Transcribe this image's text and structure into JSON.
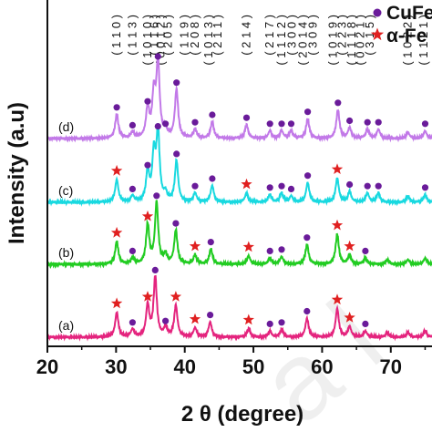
{
  "chart_data": {
    "type": "line",
    "xlabel": "2 θ (degree)",
    "ylabel": "Intensity (a.u)",
    "xlim": [
      20,
      76
    ],
    "x_ticks": [
      20,
      30,
      40,
      50,
      60,
      70
    ],
    "x_tick_labels": [
      "20",
      "30",
      "40",
      "50",
      "60",
      "70"
    ],
    "grid": false,
    "legend": {
      "placement": "top-right",
      "entries": [
        {
          "symbol": "circle",
          "color": "#6a1b9a",
          "label": "CuFe"
        },
        {
          "symbol": "star",
          "color": "#e02020",
          "label": "α-Fe"
        }
      ]
    },
    "series": [
      {
        "label": "(a)",
        "color": "#e4247e",
        "offset": 0,
        "peaks": [
          [
            30.1,
            0.33
          ],
          [
            32.4,
            0.1
          ],
          [
            34.6,
            0.42
          ],
          [
            35.7,
            0.8
          ],
          [
            37.2,
            0.12
          ],
          [
            38.7,
            0.42
          ],
          [
            41.5,
            0.12
          ],
          [
            43.7,
            0.2
          ],
          [
            49.3,
            0.11
          ],
          [
            52.4,
            0.08
          ],
          [
            54.1,
            0.1
          ],
          [
            57.8,
            0.25
          ],
          [
            62.2,
            0.38
          ],
          [
            64.0,
            0.14
          ],
          [
            66.3,
            0.08
          ],
          [
            69.5,
            0.06
          ],
          [
            72.5,
            0.06
          ],
          [
            75.0,
            0.08
          ]
        ],
        "stars": [
          30.1,
          34.6,
          38.7,
          41.5,
          49.3,
          62.2,
          64.0
        ],
        "circles": [
          32.4,
          35.7,
          37.2,
          43.7,
          52.4,
          54.1,
          57.8,
          66.3
        ]
      },
      {
        "label": "(b)",
        "color": "#22cc22",
        "offset": 1,
        "peaks": [
          [
            30.1,
            0.3
          ],
          [
            32.4,
            0.08
          ],
          [
            34.6,
            0.52
          ],
          [
            35.9,
            0.82
          ],
          [
            37.2,
            0.12
          ],
          [
            38.7,
            0.45
          ],
          [
            41.5,
            0.12
          ],
          [
            43.8,
            0.2
          ],
          [
            49.3,
            0.11
          ],
          [
            52.4,
            0.08
          ],
          [
            54.1,
            0.1
          ],
          [
            57.8,
            0.26
          ],
          [
            62.2,
            0.4
          ],
          [
            64.0,
            0.12
          ],
          [
            66.3,
            0.08
          ],
          [
            69.5,
            0.06
          ],
          [
            72.5,
            0.06
          ],
          [
            75.0,
            0.08
          ]
        ],
        "stars": [
          30.1,
          34.6,
          41.5,
          49.3,
          62.2,
          64.0
        ],
        "circles": [
          32.4,
          35.9,
          38.7,
          43.8,
          52.4,
          54.1,
          57.8,
          66.3
        ]
      },
      {
        "label": "(c)",
        "color": "#19d9e0",
        "offset": 2,
        "peaks": [
          [
            30.1,
            0.3
          ],
          [
            32.4,
            0.08
          ],
          [
            34.6,
            0.4
          ],
          [
            35.5,
            0.6
          ],
          [
            36.1,
            0.92
          ],
          [
            37.2,
            0.1
          ],
          [
            38.8,
            0.55
          ],
          [
            41.5,
            0.12
          ],
          [
            44.0,
            0.22
          ],
          [
            49.0,
            0.12
          ],
          [
            52.4,
            0.1
          ],
          [
            54.1,
            0.12
          ],
          [
            55.5,
            0.08
          ],
          [
            57.9,
            0.26
          ],
          [
            62.2,
            0.32
          ],
          [
            64.0,
            0.14
          ],
          [
            66.6,
            0.12
          ],
          [
            68.2,
            0.12
          ],
          [
            72.5,
            0.08
          ],
          [
            75.0,
            0.1
          ]
        ],
        "stars": [
          30.1,
          49.0,
          62.2
        ],
        "circles": [
          32.4,
          34.6,
          36.1,
          38.8,
          41.5,
          44.0,
          52.4,
          54.1,
          55.5,
          57.9,
          64.0,
          66.6,
          68.2,
          75.0
        ]
      },
      {
        "label": "(d)",
        "color": "#c279e8",
        "offset": 3,
        "peaks": [
          [
            30.1,
            0.32
          ],
          [
            32.4,
            0.08
          ],
          [
            34.6,
            0.4
          ],
          [
            35.5,
            0.55
          ],
          [
            36.1,
            1.0
          ],
          [
            37.2,
            0.1
          ],
          [
            38.8,
            0.65
          ],
          [
            41.5,
            0.12
          ],
          [
            44.0,
            0.22
          ],
          [
            49.0,
            0.18
          ],
          [
            52.4,
            0.1
          ],
          [
            54.1,
            0.1
          ],
          [
            55.5,
            0.1
          ],
          [
            57.9,
            0.26
          ],
          [
            62.3,
            0.38
          ],
          [
            64.0,
            0.14
          ],
          [
            66.6,
            0.12
          ],
          [
            68.2,
            0.12
          ],
          [
            72.5,
            0.08
          ],
          [
            75.0,
            0.1
          ]
        ],
        "stars": [],
        "circles": [
          30.1,
          32.4,
          34.6,
          36.1,
          37.2,
          38.8,
          41.5,
          44.0,
          49.0,
          52.4,
          54.1,
          55.5,
          57.9,
          62.3,
          64.0,
          66.6,
          68.2,
          75.0
        ]
      }
    ],
    "hkl_labels": [
      {
        "x": 30.1,
        "text": "( 1 1 0 )"
      },
      {
        "x": 32.4,
        "text": "( 1 1 3 )"
      },
      {
        "x": 34.6,
        "text": "( 1 0 1 0 )"
      },
      {
        "x": 35.6,
        "text": "( 1 1 6 )"
      },
      {
        "x": 36.5,
        "text": "( 0 0 1 2 )"
      },
      {
        "x": 37.6,
        "text": "( 2 0 5 )"
      },
      {
        "x": 40.0,
        "text": "( 1 1 9 )"
      },
      {
        "x": 41.5,
        "text": "( 2 0 8 )"
      },
      {
        "x": 43.5,
        "text": "( 1 0 1 3 )"
      },
      {
        "x": 44.8,
        "text": "( 2 1 1 )"
      },
      {
        "x": 49.0,
        "text": "( 2 1 4 )"
      },
      {
        "x": 52.4,
        "text": "( 2 1 7 )"
      },
      {
        "x": 54.1,
        "text": "( 1 1 1 2 )"
      },
      {
        "x": 55.6,
        "text": "( 3 0 0 )"
      },
      {
        "x": 57.2,
        "text": "( 2 0 1 4 )"
      },
      {
        "x": 58.7,
        "text": "( 3 0 9 )"
      },
      {
        "x": 61.6,
        "text": "( 1 0 1 9 )"
      },
      {
        "x": 62.9,
        "text": "( 2 2 3 )"
      },
      {
        "x": 64.3,
        "text": "( 1 1 1 8 )"
      },
      {
        "x": 65.6,
        "text": "( 0 0 2 1 )"
      },
      {
        "x": 67.0,
        "text": "( 3 1 5 )"
      },
      {
        "x": 72.5,
        "text": "( 1 0 2 2 )"
      },
      {
        "x": 74.8,
        "text": "( 1 1 2 1 )"
      }
    ]
  }
}
